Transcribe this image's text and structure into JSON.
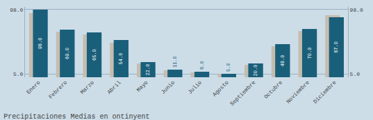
{
  "chart_data": {
    "type": "bar",
    "title": "Precipitaciones Medias en ontinyent",
    "categories": [
      "Enero",
      "Febrero",
      "Marzo",
      "Abril",
      "Mayo",
      "Junio",
      "Julio",
      "Agosto",
      "Septiembre",
      "Octubre",
      "Noviembre",
      "Diciembre"
    ],
    "series": [
      {
        "color": "#c5bdb0",
        "values": [
          93.0,
          66.0,
          62.0,
          50.0,
          20.0,
          10.0,
          7.0,
          5.0,
          18.0,
          45.0,
          67.0,
          90.0
        ]
      },
      {
        "color": "#1a5f7a",
        "values": [
          98.0,
          69.0,
          65.0,
          54.0,
          22.0,
          11.0,
          8.0,
          5.0,
          20.0,
          48.0,
          70.0,
          87.0
        ],
        "data_labels": true,
        "value_labels": [
          "98.0",
          "69.0",
          "65.0",
          "54.0",
          "22.0",
          "11.0",
          "8.0",
          "5.0",
          "20.0",
          "48.0",
          "70.0",
          "87.0"
        ]
      }
    ],
    "ylim": [
      0,
      101.92
    ],
    "yticks": [
      {
        "value": 5.0,
        "label": "5.0"
      },
      {
        "value": 98.0,
        "label": "98.0"
      }
    ],
    "y2lim": [
      0,
      101.92
    ],
    "y2ticks": [
      {
        "value": 5.0,
        "label": "5.0"
      },
      {
        "value": 98.0,
        "label": "98.0"
      }
    ],
    "grid": true
  }
}
